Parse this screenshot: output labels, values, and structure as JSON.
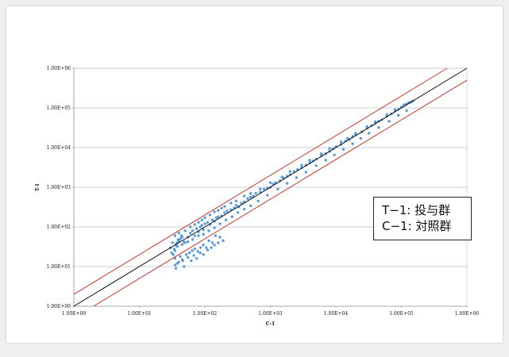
{
  "chart_data": {
    "type": "scatter",
    "xscale": "log",
    "yscale": "log",
    "xlim": [
      1,
      1000000
    ],
    "ylim": [
      1,
      1000000
    ],
    "xlabel": "C-1",
    "ylabel": "T-1",
    "x_ticks": [
      1,
      10,
      100,
      1000,
      10000,
      100000,
      1000000
    ],
    "y_ticks": [
      1,
      10,
      100,
      1000,
      10000,
      100000,
      1000000
    ],
    "x_tick_labels": [
      "1.00E+00",
      "1.00E+01",
      "1.00E+02",
      "1.00E+03",
      "1.00E+04",
      "1.00E+05",
      "1.00E+06"
    ],
    "y_tick_labels": [
      "1.00E+00",
      "1.00E+01",
      "1.00E+02",
      "1.00E+03",
      "1.00E+04",
      "1.00E+05",
      "1.00E+06"
    ],
    "grid": "horizontal",
    "legend_position": "right",
    "legend_lines": [
      "T−1: 投与群",
      "C−1: 対照群"
    ],
    "reference_lines": [
      {
        "kind": "identity",
        "ratio": 1,
        "color": "#111111"
      },
      {
        "kind": "upper",
        "ratio": 2,
        "color": "#c0392b"
      },
      {
        "kind": "lower",
        "ratio": 0.5,
        "color": "#c0392b"
      }
    ],
    "series": [
      {
        "color": "#5b9bd5",
        "x": [
          35,
          30,
          32,
          38,
          40,
          45,
          33,
          36,
          42,
          48,
          34,
          37,
          31,
          39,
          44,
          50,
          55,
          60,
          65,
          70,
          75,
          80,
          85,
          90,
          95,
          100,
          110,
          120,
          130,
          140,
          150,
          160,
          180,
          200,
          220,
          250,
          280,
          300,
          330,
          360,
          400,
          450,
          500,
          550,
          600,
          700,
          800,
          900,
          1000,
          1100,
          1200,
          1400,
          1600,
          1800,
          2000,
          2300,
          2600,
          3000,
          3500,
          4000,
          4500,
          5000,
          6000,
          7000,
          8000,
          9000,
          10000,
          12000,
          14000,
          16000,
          18000,
          20000,
          25000,
          30000,
          35000,
          40000,
          45000,
          50000,
          60000,
          70000,
          80000,
          90000,
          100000,
          110000,
          120000,
          130000,
          140000,
          150000,
          35,
          40,
          50,
          60,
          70,
          80,
          90,
          100,
          120,
          140,
          160,
          180,
          200,
          250,
          300,
          400,
          500,
          700,
          1000,
          1500,
          2000,
          3000,
          4000,
          6000,
          8000,
          12000,
          15000,
          20000,
          30000,
          40000,
          60000,
          80000,
          110000,
          35,
          38,
          42,
          46,
          52,
          58,
          64,
          70,
          78,
          86,
          95,
          105,
          115,
          130,
          145,
          170,
          35,
          36,
          40,
          45,
          48,
          55,
          62,
          68,
          75,
          85,
          95,
          110,
          125,
          140,
          160,
          190,
          38,
          45,
          55,
          65,
          80,
          95,
          115,
          140,
          170,
          210,
          260,
          320,
          400,
          500,
          650,
          900,
          1300,
          1800,
          2500,
          3500,
          5000,
          7000,
          9500,
          13000,
          18000,
          24000,
          32000,
          45000,
          65000,
          90000,
          120000
        ],
        "y": [
          25,
          30,
          40,
          32,
          45,
          55,
          20,
          35,
          50,
          42,
          28,
          38,
          22,
          48,
          60,
          40,
          55,
          70,
          80,
          60,
          90,
          75,
          100,
          110,
          85,
          120,
          130,
          115,
          150,
          140,
          170,
          180,
          190,
          230,
          250,
          270,
          300,
          350,
          320,
          400,
          430,
          520,
          560,
          600,
          700,
          750,
          900,
          950,
          1000,
          1200,
          1300,
          1450,
          1700,
          1900,
          2100,
          2500,
          2800,
          3100,
          3600,
          4100,
          4600,
          5100,
          6200,
          7000,
          8000,
          9300,
          10500,
          12000,
          14500,
          16000,
          19000,
          21000,
          25000,
          31000,
          36000,
          41000,
          46000,
          50000,
          62000,
          71000,
          83000,
          92000,
          105000,
          115000,
          125000,
          135000,
          140000,
          150000,
          60,
          70,
          80,
          100,
          115,
          130,
          150,
          170,
          200,
          240,
          260,
          300,
          330,
          400,
          450,
          600,
          700,
          900,
          1300,
          1800,
          2500,
          3600,
          4800,
          7000,
          9500,
          14000,
          17000,
          23000,
          34000,
          45000,
          68000,
          90000,
          120000,
          16,
          12,
          18,
          14,
          20,
          22,
          25,
          28,
          24,
          30,
          35,
          30,
          45,
          40,
          60,
          55,
          11,
          9,
          13,
          15,
          10,
          17,
          14,
          19,
          16,
          22,
          20,
          26,
          30,
          35,
          40,
          45,
          40,
          36,
          42,
          48,
          60,
          65,
          80,
          95,
          120,
          150,
          180,
          230,
          280,
          340,
          450,
          630,
          900,
          1250,
          1750,
          2400,
          3500,
          4800,
          6500,
          9000,
          12500,
          17000,
          23000,
          32000,
          46000,
          65000,
          85000
        ]
      }
    ]
  }
}
